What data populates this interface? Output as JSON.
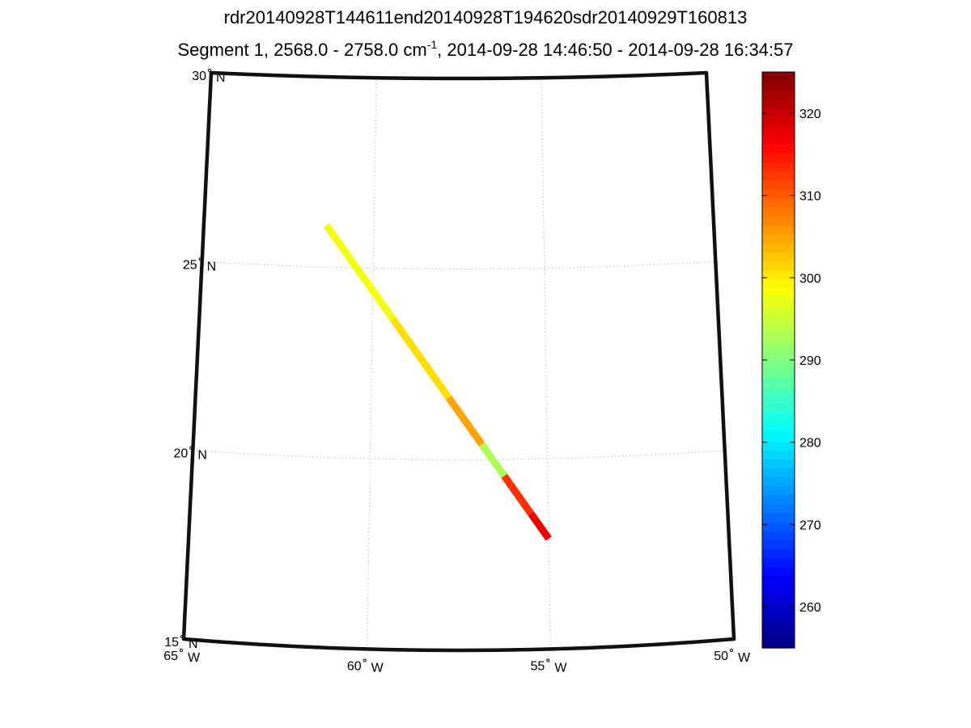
{
  "chart_data": {
    "type": "scatter",
    "title": "rdr20140928T144611end20140928T194620sdr20140929T160813",
    "subtitle": {
      "prefix": "Segment 1, 2568.0 - 2758.0 cm",
      "superscript": "-1",
      "suffix": ", 2014-09-28 14:46:50 - 2014-09-28 16:34:57"
    },
    "map": {
      "lon_range": [
        -65,
        -50
      ],
      "lat_range": [
        15,
        30
      ],
      "grid": true,
      "lat_ticks": [
        {
          "value": 15,
          "label": "15",
          "hemi": "N"
        },
        {
          "value": 20,
          "label": "20",
          "hemi": "N"
        },
        {
          "value": 25,
          "label": "25",
          "hemi": "N"
        },
        {
          "value": 30,
          "label": "30",
          "hemi": "N"
        }
      ],
      "lon_ticks": [
        {
          "value": -65,
          "label": "65",
          "hemi": "W"
        },
        {
          "value": -60,
          "label": "60",
          "hemi": "W"
        },
        {
          "value": -55,
          "label": "55",
          "hemi": "W"
        },
        {
          "value": -50,
          "label": "50",
          "hemi": "W"
        }
      ]
    },
    "colorbar": {
      "range": [
        255,
        325
      ],
      "ticks": [
        260,
        270,
        280,
        290,
        300,
        310,
        320
      ],
      "colormap": "jet"
    },
    "track": {
      "start": {
        "lon": -61.4,
        "lat": 26.1
      },
      "end": {
        "lon": -55.0,
        "lat": 17.9
      },
      "segments": [
        {
          "t0": 0.0,
          "t1": 0.3,
          "value": 298
        },
        {
          "t0": 0.3,
          "t1": 0.55,
          "value": 301
        },
        {
          "t0": 0.55,
          "t1": 0.7,
          "value": 305
        },
        {
          "t0": 0.7,
          "t1": 0.8,
          "value": 293
        },
        {
          "t0": 0.8,
          "t1": 0.92,
          "value": 313
        },
        {
          "t0": 0.92,
          "t1": 1.0,
          "value": 317
        }
      ]
    }
  }
}
